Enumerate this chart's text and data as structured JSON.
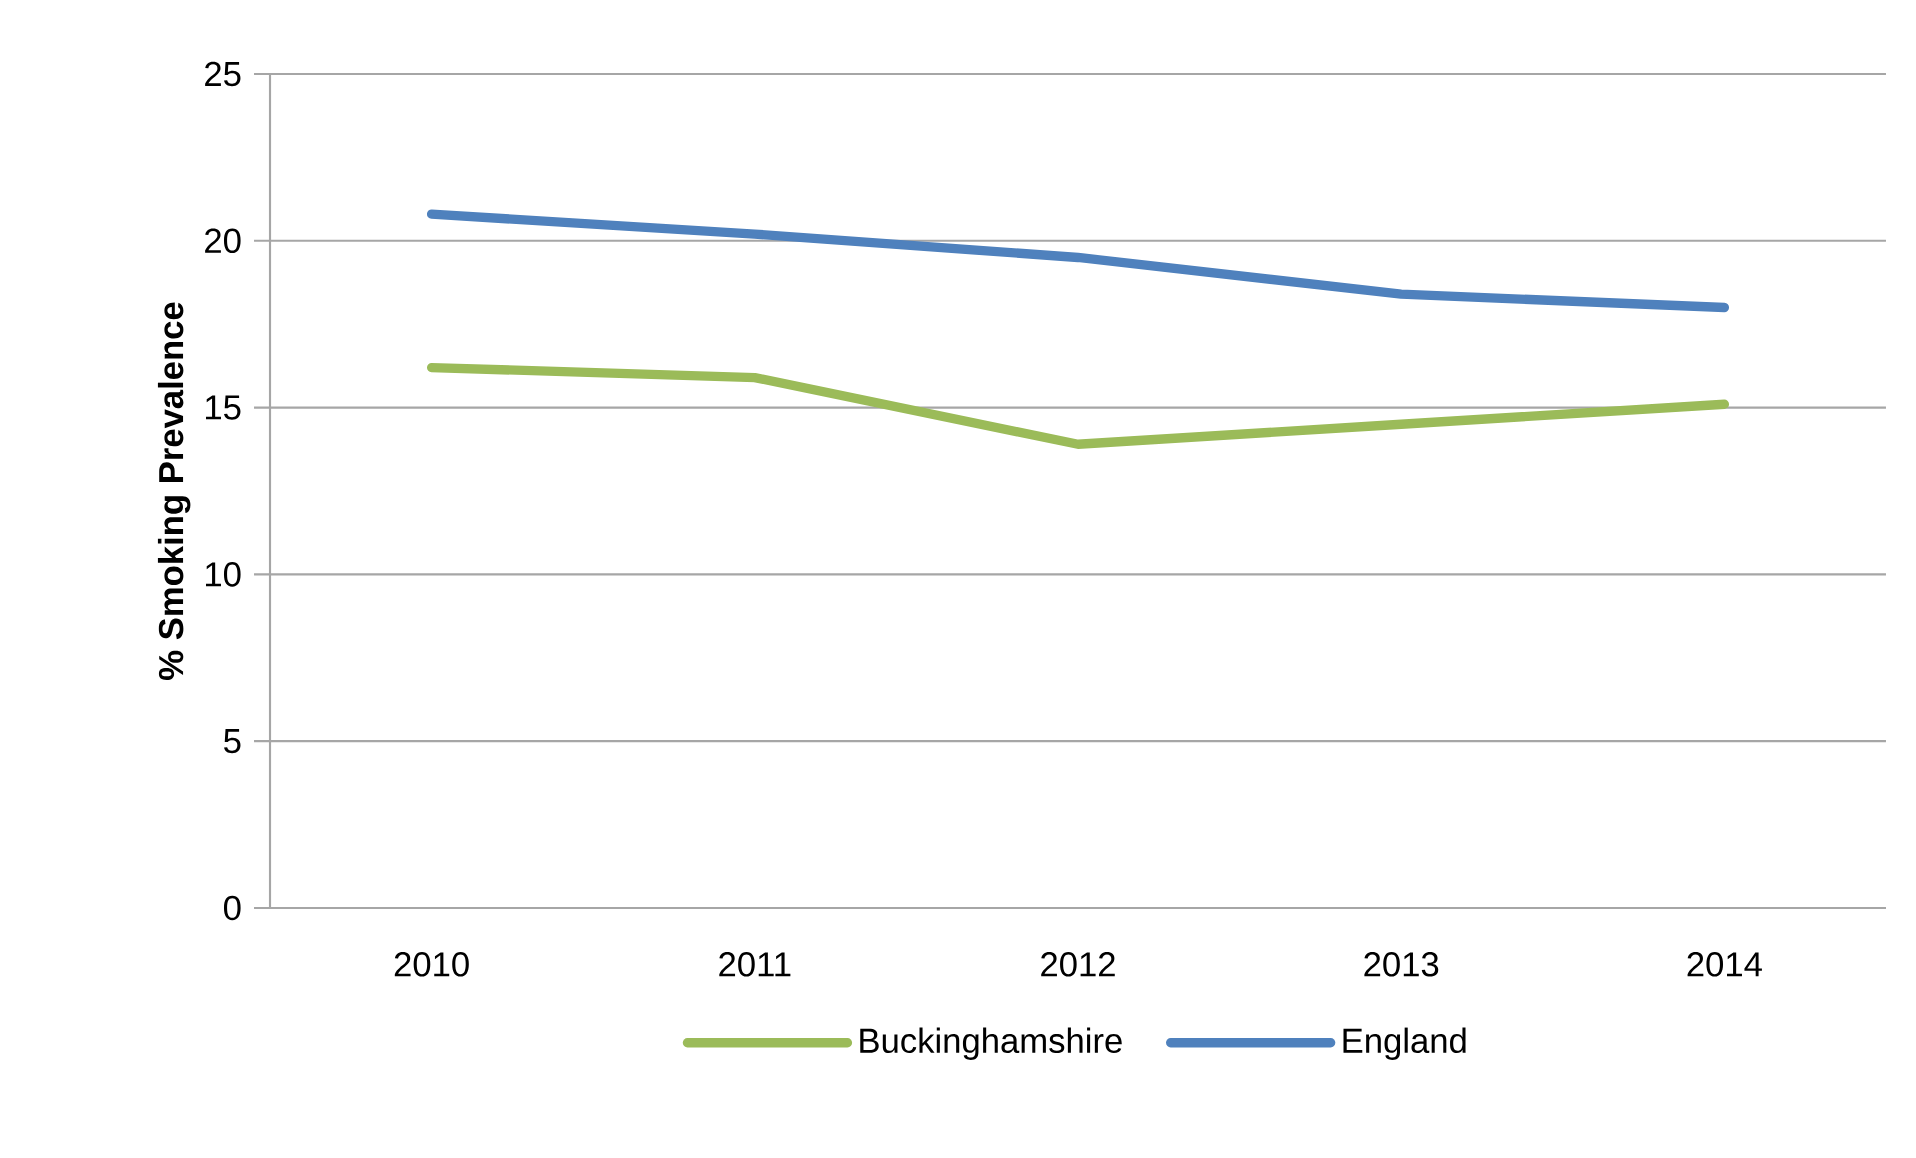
{
  "chart_data": {
    "type": "line",
    "ylabel": "% Smoking Prevalence",
    "categories": [
      "2010",
      "2011",
      "2012",
      "2013",
      "2014"
    ],
    "series": [
      {
        "name": "Buckinghamshire",
        "color": "#9bbb59",
        "values": [
          16.2,
          15.9,
          13.9,
          14.5,
          15.1
        ]
      },
      {
        "name": "England",
        "color": "#4f81bd",
        "values": [
          20.8,
          20.2,
          19.5,
          18.4,
          18.0
        ]
      }
    ],
    "ylim": [
      0,
      25
    ],
    "yticks": [
      0,
      5,
      10,
      15,
      20,
      25
    ],
    "grid": "y",
    "legend": "bottom",
    "marker": "none",
    "line_style": "solid"
  }
}
